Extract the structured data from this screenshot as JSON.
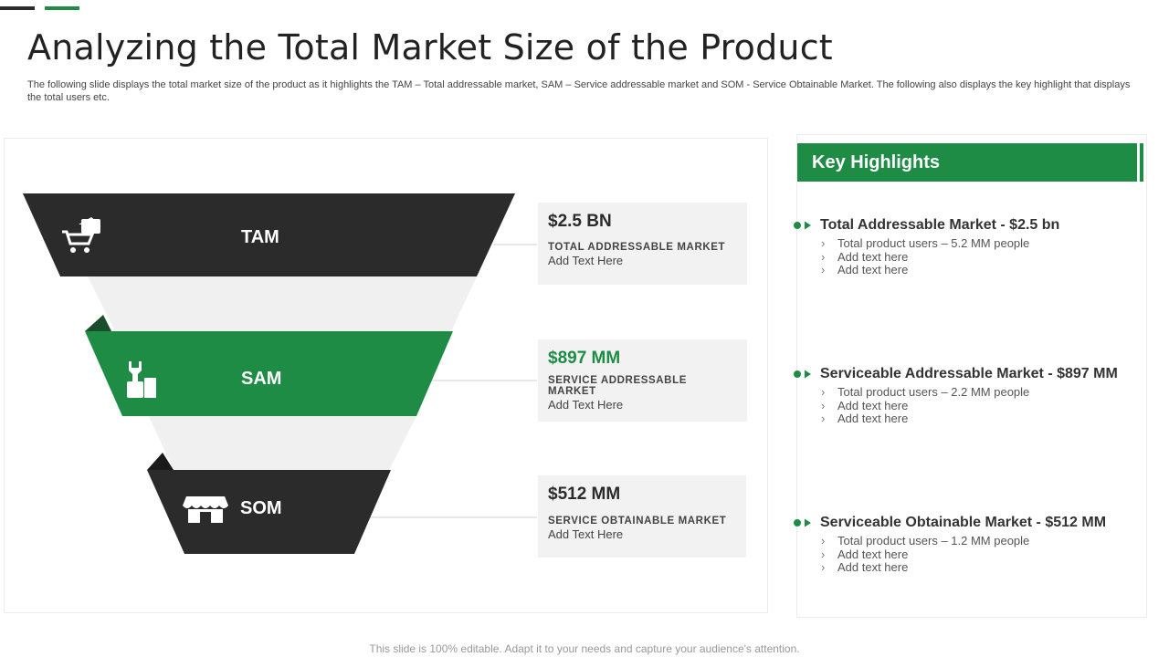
{
  "title": "Analyzing the Total Market Size of the Product",
  "subtitle": "The following slide displays the total market size of the product as it highlights the TAM  – Total addressable market, SAM – Service addressable market and SOM -  Service Obtainable Market. The following also displays the key highlight that displays the total users etc.",
  "colors": {
    "dark": "#2b2b2b",
    "green": "#1e8c45",
    "light": "#f0f0f0"
  },
  "funnel": [
    {
      "label": "TAM",
      "icon": "shopping-cart-icon",
      "value": "$2.5 BN",
      "value_color": "#2b2b2b",
      "caption": "TOTAL ADDRESSABLE  MARKET",
      "note": "Add Text Here"
    },
    {
      "label": "SAM",
      "icon": "thumbs-up-wrench-icon",
      "value": "$897 MM",
      "value_color": "#1e8c45",
      "caption": "SERVICE  ADDRESSABLE  MARKET",
      "note": "Add Text Here"
    },
    {
      "label": "SOM",
      "icon": "storefront-icon",
      "value": "$512 MM",
      "value_color": "#2b2b2b",
      "caption": "SERVICE  OBTAINABLE  MARKET",
      "note": "Add Text Here"
    }
  ],
  "key_highlights": {
    "header": "Key Highlights",
    "items": [
      {
        "title": "Total Addressable Market - $2.5 bn",
        "points": [
          "Total product users – 5.2 MM people",
          "Add text here",
          "Add text here"
        ]
      },
      {
        "title": "Serviceable Addressable Market - $897 MM",
        "points": [
          "Total product users – 2.2 MM people",
          "Add text here",
          "Add text here"
        ]
      },
      {
        "title": "Serviceable Obtainable Market - $512 MM",
        "points": [
          "Total product users – 1.2 MM people",
          "Add text here",
          "Add text here"
        ]
      }
    ]
  },
  "footer": "This slide is 100% editable. Adapt it to your needs and capture your audience's attention."
}
